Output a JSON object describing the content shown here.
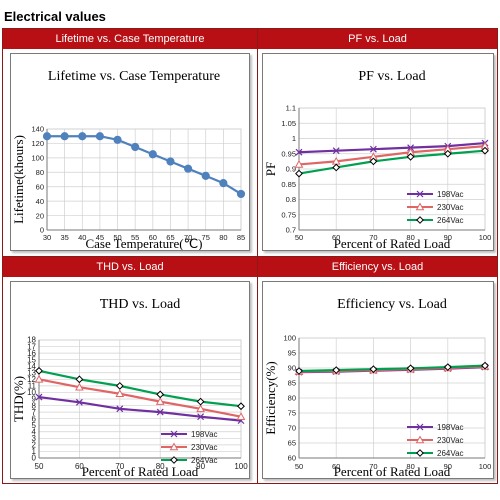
{
  "heading": "Electrical values",
  "panels": [
    {
      "header": "Lifetime vs. Case Temperature"
    },
    {
      "header": "PF vs. Load"
    },
    {
      "header": "THD vs. Load"
    },
    {
      "header": "Efficiency vs. Load"
    }
  ],
  "chart_data": [
    {
      "type": "line",
      "title": "Lifetime vs. Case Temperature",
      "xlabel": "Case Temperature(℃)",
      "ylabel": "Lifetime(khours)",
      "x": [
        30,
        35,
        40,
        45,
        50,
        55,
        60,
        65,
        70,
        75,
        80,
        85
      ],
      "xticks": [
        30,
        35,
        40,
        45,
        50,
        55,
        60,
        65,
        70,
        75,
        80,
        85
      ],
      "xlim": [
        30,
        85
      ],
      "ylim": [
        0,
        140
      ],
      "yticks": [
        0,
        20,
        40,
        60,
        80,
        100,
        120,
        140
      ],
      "yticklabels": [
        "0",
        "20",
        "40",
        "60",
        "80",
        "100",
        "120",
        "140"
      ],
      "grid": true,
      "series": [
        {
          "values": [
            130,
            130,
            130,
            130,
            125,
            115,
            105,
            95,
            85,
            75,
            65,
            50
          ],
          "color": "#4f81bd",
          "marker": "circle"
        }
      ]
    },
    {
      "type": "line",
      "title": "PF vs. Load",
      "xlabel": "Percent of Rated Load",
      "ylabel": "PF",
      "x": [
        50,
        60,
        70,
        80,
        90,
        100
      ],
      "xticks": [
        50,
        60,
        70,
        80,
        90,
        100
      ],
      "xlim": [
        50,
        100
      ],
      "ylim": [
        0.7,
        1.1
      ],
      "yticks": [
        0.7,
        0.75,
        0.8,
        0.85,
        0.9,
        0.95,
        1,
        1.05,
        1.1
      ],
      "yticklabels": [
        "0.7",
        "0.75",
        "0.8",
        "0.85",
        "0.9",
        "0.95",
        "1",
        "1.05",
        "1.1"
      ],
      "grid": true,
      "legend": "bottom-right",
      "series": [
        {
          "name": "198Vac",
          "values": [
            0.955,
            0.96,
            0.965,
            0.97,
            0.975,
            0.985
          ],
          "color": "#7030a0",
          "marker": "x"
        },
        {
          "name": "230Vac",
          "values": [
            0.915,
            0.925,
            0.94,
            0.955,
            0.965,
            0.975
          ],
          "color": "#e06666",
          "marker": "triangle"
        },
        {
          "name": "264Vac",
          "values": [
            0.885,
            0.905,
            0.925,
            0.94,
            0.95,
            0.96
          ],
          "color": "#00a050",
          "marker": "diamond"
        }
      ]
    },
    {
      "type": "line",
      "title": "THD vs. Load",
      "xlabel": "Percent of Rated Load",
      "ylabel": "THD(%)",
      "x": [
        50,
        60,
        70,
        80,
        90,
        100
      ],
      "xticks": [
        50,
        60,
        70,
        80,
        90,
        100
      ],
      "xlim": [
        50,
        100
      ],
      "ylim": [
        0,
        18
      ],
      "yticks": [
        0,
        1,
        2,
        3,
        4,
        5,
        6,
        7,
        8,
        9,
        10,
        11,
        12,
        13,
        14,
        15,
        16,
        17,
        18
      ],
      "yticklabels": [
        "0",
        "1",
        "2",
        "3",
        "4",
        "5",
        "6",
        "7",
        "8",
        "9",
        "10",
        "11",
        "12",
        "13",
        "14",
        "15",
        "16",
        "17",
        "18"
      ],
      "grid": true,
      "legend": "bottom-right",
      "series": [
        {
          "name": "198Vac",
          "values": [
            9.3,
            8.5,
            7.5,
            7.0,
            6.3,
            5.7
          ],
          "color": "#7030a0",
          "marker": "x"
        },
        {
          "name": "230Vac",
          "values": [
            12.0,
            10.8,
            9.8,
            8.6,
            7.5,
            6.3
          ],
          "color": "#e06666",
          "marker": "triangle"
        },
        {
          "name": "264Vac",
          "values": [
            13.3,
            12.0,
            11.0,
            9.7,
            8.6,
            7.9
          ],
          "color": "#00a050",
          "marker": "diamond"
        }
      ]
    },
    {
      "type": "line",
      "title": "Efficiency vs. Load",
      "xlabel": "Percent of Rated Load",
      "ylabel": "Efficiency(%)",
      "x": [
        50,
        60,
        70,
        80,
        90,
        100
      ],
      "xticks": [
        50,
        60,
        70,
        80,
        90,
        100
      ],
      "xlim": [
        50,
        100
      ],
      "ylim": [
        60,
        100
      ],
      "yticks": [
        60,
        65,
        70,
        75,
        80,
        85,
        90,
        95,
        100
      ],
      "yticklabels": [
        "60",
        "65",
        "70",
        "75",
        "80",
        "85",
        "90",
        "95",
        "100"
      ],
      "grid": true,
      "legend": "bottom-right",
      "series": [
        {
          "name": "198Vac",
          "values": [
            88.6,
            88.8,
            89.1,
            89.4,
            89.8,
            90.3
          ],
          "color": "#7030a0",
          "marker": "x"
        },
        {
          "name": "230Vac",
          "values": [
            88.8,
            89.0,
            89.3,
            89.6,
            90.0,
            90.5
          ],
          "color": "#e06666",
          "marker": "triangle"
        },
        {
          "name": "264Vac",
          "values": [
            89.0,
            89.3,
            89.6,
            89.9,
            90.3,
            90.8
          ],
          "color": "#00a050",
          "marker": "diamond"
        }
      ]
    }
  ]
}
